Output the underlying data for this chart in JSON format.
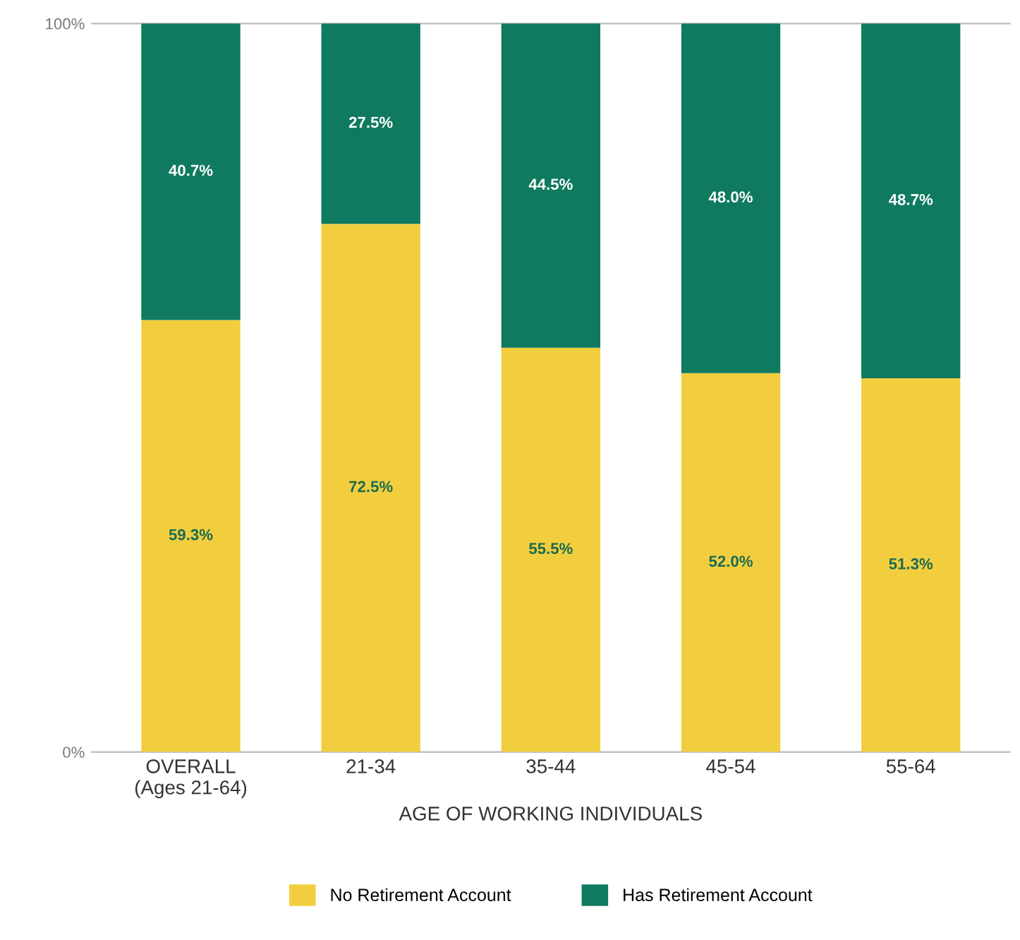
{
  "chart_data": {
    "type": "bar",
    "stacked": true,
    "xlabel": "AGE OF WORKING INDIVIDUALS",
    "categories": [
      "OVERALL\n(Ages 21-64)",
      "21-34",
      "35-44",
      "45-54",
      "55-64"
    ],
    "series": [
      {
        "name": "No Retirement Account",
        "color": "#f2ce3f",
        "values": [
          59.3,
          72.5,
          55.5,
          52.0,
          51.3
        ],
        "value_labels": [
          "59.3%",
          "72.5%",
          "55.5%",
          "52.0%",
          "51.3%"
        ]
      },
      {
        "name": "Has Retirement Account",
        "color": "#0f7a5f",
        "values": [
          40.7,
          27.5,
          44.5,
          48.0,
          48.7
        ],
        "value_labels": [
          "40.7%",
          "27.5%",
          "44.5%",
          "48.0%",
          "48.7%"
        ]
      }
    ],
    "ylim": [
      0,
      100
    ],
    "yticks": [
      {
        "value": 0,
        "label": "0%"
      },
      {
        "value": 100,
        "label": "100%"
      }
    ],
    "legend": "bottom"
  }
}
